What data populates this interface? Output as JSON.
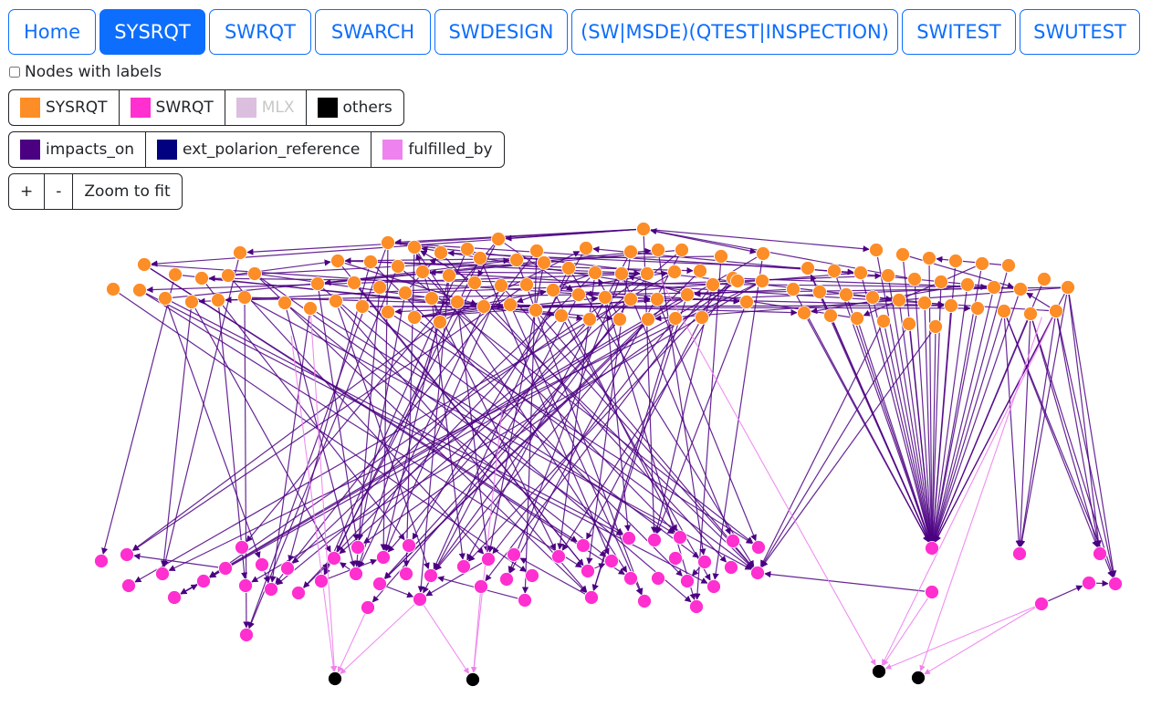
{
  "tabs": [
    {
      "label": "Home",
      "active": false
    },
    {
      "label": "SYSRQT",
      "active": true
    },
    {
      "label": "SWRQT",
      "active": false
    },
    {
      "label": "SWARCH",
      "active": false
    },
    {
      "label": "SWDESIGN",
      "active": false
    },
    {
      "label": "(SW|MSDE)(QTEST|INSPECTION)",
      "active": false
    },
    {
      "label": "SWITEST",
      "active": false
    },
    {
      "label": "SWUTEST",
      "active": false
    }
  ],
  "options": {
    "nodes_with_labels": "Nodes with labels",
    "checked": false
  },
  "node_legend": [
    {
      "label": "SYSRQT",
      "color": "#fd8d26",
      "enabled": true
    },
    {
      "label": "SWRQT",
      "color": "#ff2fd0",
      "enabled": true
    },
    {
      "label": "MLX",
      "color": "#dcbedf",
      "enabled": false
    },
    {
      "label": "others",
      "color": "#000000",
      "enabled": true
    }
  ],
  "edge_legend": [
    {
      "label": "impacts_on",
      "color": "#4b0082"
    },
    {
      "label": "ext_polarion_reference",
      "color": "#000080"
    },
    {
      "label": "fulfilled_by",
      "color": "#ee82ee"
    }
  ],
  "zoom": {
    "plus": "+",
    "minus": "-",
    "fit": "Zoom to fit"
  },
  "graph": {
    "colors": {
      "sysrqt": "#fd8d26",
      "swrqt": "#ff2fd0",
      "others": "#000000",
      "impacts_on": "#4b0082",
      "fulfilled_by": "#ee82ee"
    }
  }
}
